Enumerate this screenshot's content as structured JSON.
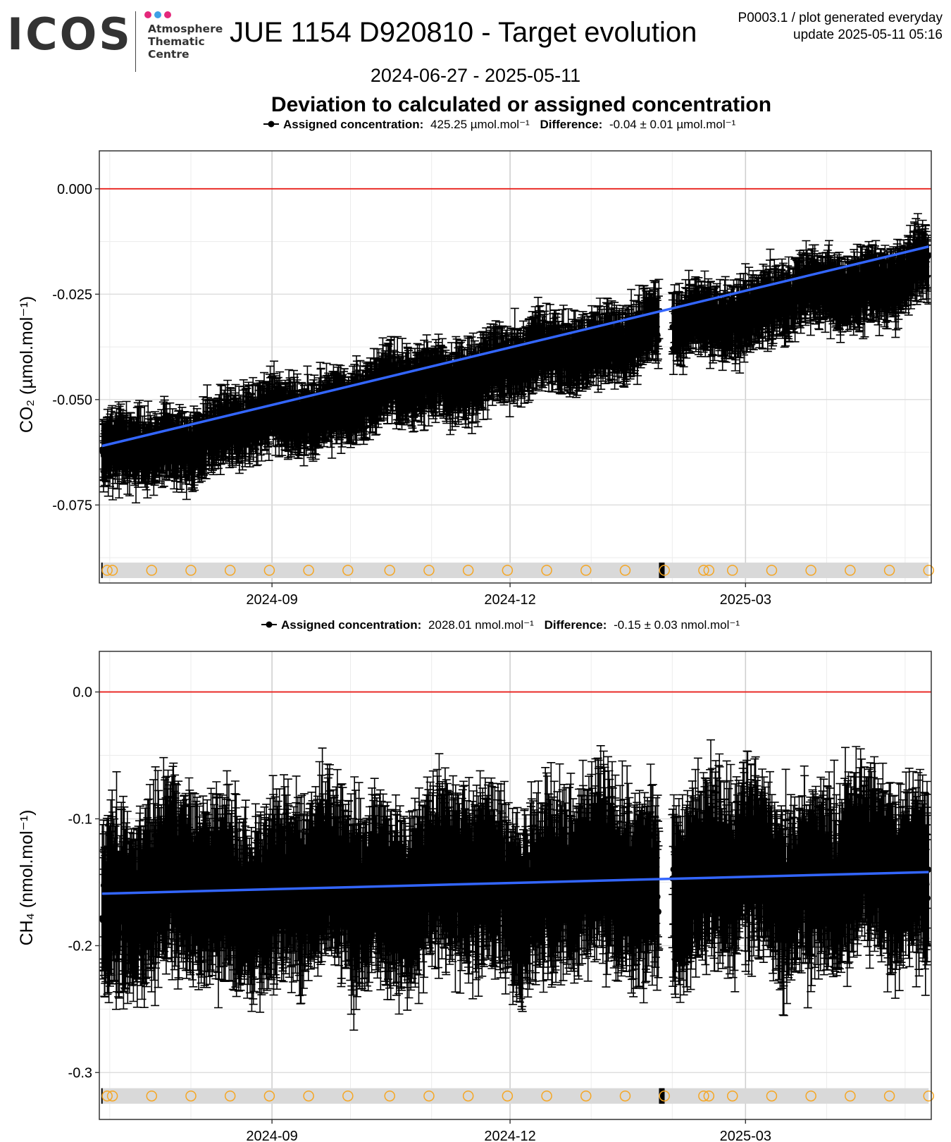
{
  "header": {
    "logo_text": "ICOS",
    "logo_sub": [
      "Atmosphere",
      "Thematic",
      "Centre"
    ],
    "logo_dot_colors": [
      "#e4287b",
      "#3da0e6",
      "#e4287b"
    ],
    "title": "JUE 1154 D920810 - Target evolution",
    "meta_line1": "P0003.1 / plot generated everyday",
    "meta_line2": "update  2025-05-11 05:16",
    "date_range": "2024-06-27 - 2025-05-11",
    "subtitle": "Deviation to calculated or assigned concentration"
  },
  "colors": {
    "trend": "#3366ff",
    "zero_line": "#e8201c",
    "points": "#000000",
    "markers": "#f5a623",
    "marker_band": "#d9d9d9"
  },
  "chart_data": [
    {
      "type": "scatter",
      "id": "co2",
      "legend": {
        "label": "Assigned concentration:",
        "value": "425.25 µmol.mol⁻¹",
        "diff_label": "Difference:",
        "diff_value": "-0.04 ± 0.01 µmol.mol⁻¹"
      },
      "ylabel": "CO₂ (µmol.mol⁻¹)",
      "xlim": [
        "2024-06-27",
        "2025-05-11"
      ],
      "ylim": [
        -0.0935,
        0.009
      ],
      "yticks": [
        0.0,
        -0.025,
        -0.05,
        -0.075
      ],
      "ytick_labels": [
        "0.000",
        "-0.025",
        "-0.050",
        "-0.075"
      ],
      "xticks": [
        "2024-09-01",
        "2024-12-01",
        "2025-03-01"
      ],
      "xtick_labels": [
        "2024-09",
        "2024-12",
        "2025-03"
      ],
      "reference_line": 0.0,
      "trend": {
        "x": [
          "2024-06-28",
          "2025-05-10"
        ],
        "y": [
          -0.061,
          -0.0137
        ]
      },
      "noise_band": {
        "x_start": "2024-06-28",
        "x_end": "2025-05-10",
        "y_start": -0.064,
        "y_end": -0.019,
        "amplitude": 0.006,
        "errorbar": 0.0055,
        "gap": [
          "2025-01-27",
          "2025-02-01"
        ]
      },
      "marker_row_y": -0.0905,
      "marker_dates": [
        "2024-06-30",
        "2024-07-02",
        "2024-07-17",
        "2024-08-01",
        "2024-08-16",
        "2024-08-31",
        "2024-09-15",
        "2024-09-30",
        "2024-10-16",
        "2024-10-31",
        "2024-11-15",
        "2024-11-30",
        "2024-12-15",
        "2024-12-30",
        "2025-01-14",
        "2025-01-29",
        "2025-02-13",
        "2025-02-15",
        "2025-02-24",
        "2025-03-11",
        "2025-03-26",
        "2025-04-10",
        "2025-04-25",
        "2025-05-10"
      ]
    },
    {
      "type": "scatter",
      "id": "ch4",
      "legend": {
        "label": "Assigned concentration:",
        "value": "2028.01 nmol.mol⁻¹",
        "diff_label": "Difference:",
        "diff_value": "-0.15 ± 0.03 nmol.mol⁻¹"
      },
      "ylabel": "CH₄ (nmol.mol⁻¹)",
      "xlim": [
        "2024-06-27",
        "2025-05-11"
      ],
      "ylim": [
        -0.337,
        0.032
      ],
      "yticks": [
        0.0,
        -0.1,
        -0.2,
        -0.3
      ],
      "ytick_labels": [
        "0.0",
        "-0.1",
        "-0.2",
        "-0.3"
      ],
      "xticks": [
        "2024-09-01",
        "2024-12-01",
        "2025-03-01"
      ],
      "xtick_labels": [
        "2024-09",
        "2024-12",
        "2025-03"
      ],
      "reference_line": 0.0,
      "trend": {
        "x": [
          "2024-06-28",
          "2025-05-10"
        ],
        "y": [
          -0.159,
          -0.142
        ]
      },
      "noise_band": {
        "x_start": "2024-06-28",
        "x_end": "2025-05-10",
        "y_start": -0.159,
        "y_end": -0.142,
        "amplitude": 0.045,
        "errorbar": 0.045,
        "gap": [
          "2025-01-27",
          "2025-02-01"
        ]
      },
      "marker_row_y": -0.3185,
      "marker_dates": [
        "2024-06-30",
        "2024-07-02",
        "2024-07-17",
        "2024-08-01",
        "2024-08-16",
        "2024-08-31",
        "2024-09-15",
        "2024-09-30",
        "2024-10-16",
        "2024-10-31",
        "2024-11-15",
        "2024-11-30",
        "2024-12-15",
        "2024-12-30",
        "2025-01-14",
        "2025-01-29",
        "2025-02-13",
        "2025-02-15",
        "2025-02-24",
        "2025-03-11",
        "2025-03-26",
        "2025-04-10",
        "2025-04-25",
        "2025-05-10"
      ]
    }
  ]
}
